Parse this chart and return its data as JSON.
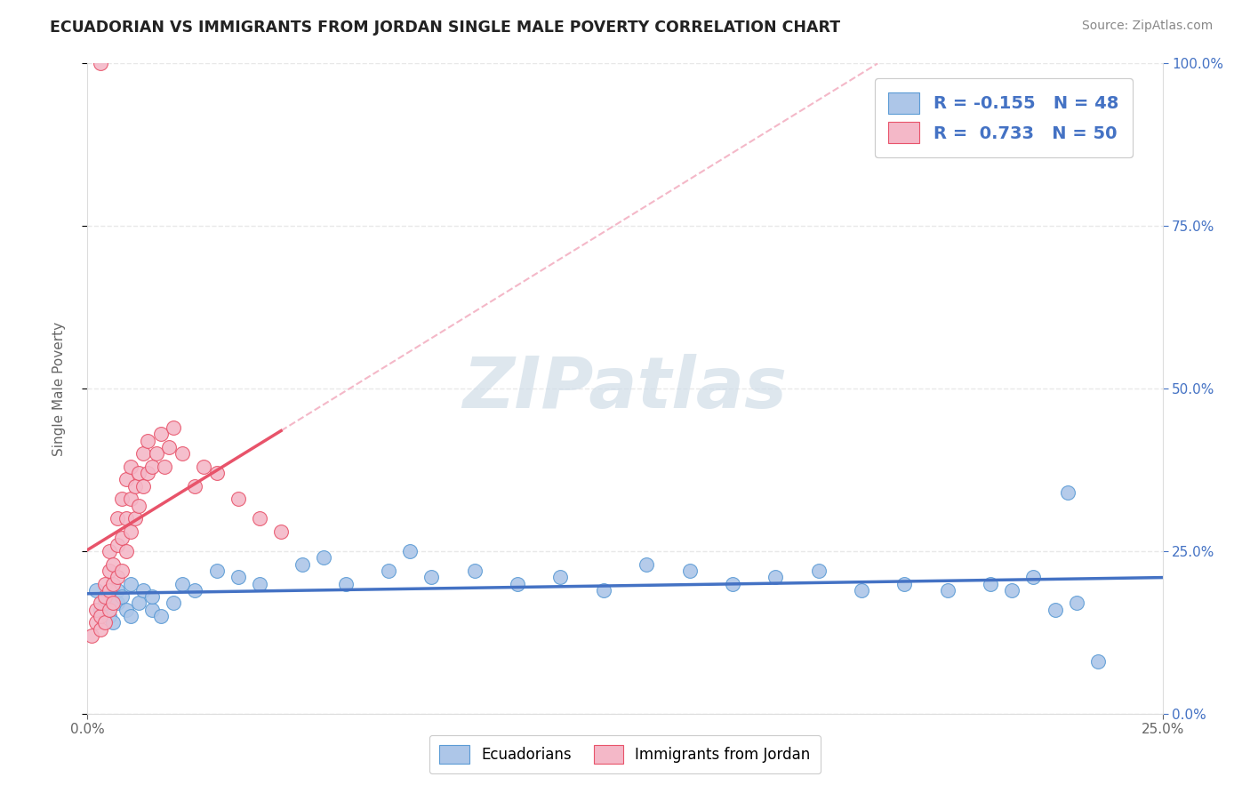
{
  "title": "ECUADORIAN VS IMMIGRANTS FROM JORDAN SINGLE MALE POVERTY CORRELATION CHART",
  "source": "Source: ZipAtlas.com",
  "ylabel": "Single Male Poverty",
  "xlim": [
    0.0,
    0.25
  ],
  "ylim": [
    0.0,
    1.0
  ],
  "xtick_labels": [
    "0.0%",
    "25.0%"
  ],
  "xtick_positions": [
    0.0,
    0.25
  ],
  "ytick_labels": [
    "0.0%",
    "25.0%",
    "50.0%",
    "75.0%",
    "100.0%"
  ],
  "ytick_positions": [
    0.0,
    0.25,
    0.5,
    0.75,
    1.0
  ],
  "ecuadorians_fill": "#adc6e8",
  "ecuadorians_edge": "#5b9bd5",
  "jordan_fill": "#f4b8c8",
  "jordan_edge": "#e8536a",
  "ecuador_line_color": "#4472C4",
  "jordan_line_color": "#e8536a",
  "dashed_line_color": "#f4b8c8",
  "ecuador_R": -0.155,
  "ecuador_N": 48,
  "jordan_R": 0.733,
  "jordan_N": 50,
  "watermark_color": "#d0dde8",
  "background_color": "#ffffff",
  "grid_color": "#e8e8e8",
  "ecuador_scatter_x": [
    0.002,
    0.003,
    0.004,
    0.005,
    0.005,
    0.006,
    0.007,
    0.007,
    0.008,
    0.009,
    0.01,
    0.01,
    0.012,
    0.013,
    0.015,
    0.015,
    0.017,
    0.02,
    0.022,
    0.025,
    0.03,
    0.035,
    0.04,
    0.05,
    0.055,
    0.06,
    0.07,
    0.075,
    0.08,
    0.09,
    0.1,
    0.11,
    0.12,
    0.13,
    0.14,
    0.15,
    0.16,
    0.17,
    0.18,
    0.19,
    0.2,
    0.21,
    0.215,
    0.22,
    0.225,
    0.228,
    0.23,
    0.235
  ],
  "ecuador_scatter_y": [
    0.19,
    0.16,
    0.17,
    0.18,
    0.15,
    0.14,
    0.17,
    0.19,
    0.18,
    0.16,
    0.15,
    0.2,
    0.17,
    0.19,
    0.16,
    0.18,
    0.15,
    0.17,
    0.2,
    0.19,
    0.22,
    0.21,
    0.2,
    0.23,
    0.24,
    0.2,
    0.22,
    0.25,
    0.21,
    0.22,
    0.2,
    0.21,
    0.19,
    0.23,
    0.22,
    0.2,
    0.21,
    0.22,
    0.19,
    0.2,
    0.19,
    0.2,
    0.19,
    0.21,
    0.16,
    0.34,
    0.17,
    0.08
  ],
  "jordan_scatter_x": [
    0.001,
    0.002,
    0.002,
    0.003,
    0.003,
    0.003,
    0.004,
    0.004,
    0.004,
    0.005,
    0.005,
    0.005,
    0.005,
    0.006,
    0.006,
    0.006,
    0.007,
    0.007,
    0.007,
    0.008,
    0.008,
    0.008,
    0.009,
    0.009,
    0.009,
    0.01,
    0.01,
    0.01,
    0.011,
    0.011,
    0.012,
    0.012,
    0.013,
    0.013,
    0.014,
    0.014,
    0.015,
    0.016,
    0.017,
    0.018,
    0.019,
    0.02,
    0.022,
    0.025,
    0.027,
    0.03,
    0.035,
    0.04,
    0.045,
    0.003
  ],
  "jordan_scatter_y": [
    0.12,
    0.14,
    0.16,
    0.13,
    0.15,
    0.17,
    0.14,
    0.18,
    0.2,
    0.16,
    0.19,
    0.22,
    0.25,
    0.17,
    0.2,
    0.23,
    0.21,
    0.26,
    0.3,
    0.22,
    0.27,
    0.33,
    0.25,
    0.3,
    0.36,
    0.28,
    0.33,
    0.38,
    0.3,
    0.35,
    0.32,
    0.37,
    0.35,
    0.4,
    0.37,
    0.42,
    0.38,
    0.4,
    0.43,
    0.38,
    0.41,
    0.44,
    0.4,
    0.35,
    0.38,
    0.37,
    0.33,
    0.3,
    0.28,
    1.0
  ]
}
